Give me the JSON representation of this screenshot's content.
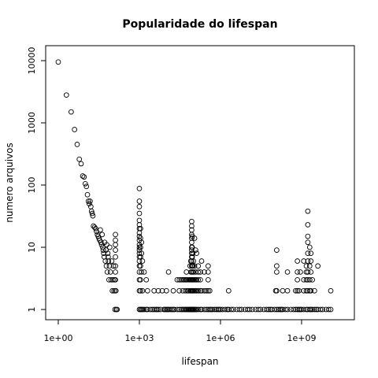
{
  "chart_data": {
    "type": "scatter",
    "title": "Popularidade do lifespan",
    "xlabel": "lifespan",
    "ylabel": "numero arquivos",
    "x_scale": "log",
    "y_scale": "log",
    "xlim": [
      0.7,
      30000000000.0
    ],
    "ylim": [
      0.8,
      13000
    ],
    "grid": false,
    "legend": "none",
    "marker": "open-circle",
    "colors": {
      "marker": "#000000",
      "axes": "#000000",
      "background": "#ffffff"
    },
    "x_ticks": [
      {
        "value": 1,
        "label": "1e+00"
      },
      {
        "value": 1000,
        "label": "1e+03"
      },
      {
        "value": 1000000,
        "label": "1e+06"
      },
      {
        "value": 1000000000,
        "label": "1e+09"
      }
    ],
    "y_ticks": [
      {
        "value": 1,
        "label": "1"
      },
      {
        "value": 10,
        "label": "10"
      },
      {
        "value": 100,
        "label": "100"
      },
      {
        "value": 1000,
        "label": "1000"
      },
      {
        "value": 10000,
        "label": "10000"
      }
    ],
    "points": [
      [
        1,
        9500
      ],
      [
        2,
        2800
      ],
      [
        3,
        1500
      ],
      [
        4,
        780
      ],
      [
        5,
        450
      ],
      [
        6,
        260
      ],
      [
        7,
        220
      ],
      [
        8,
        140
      ],
      [
        9,
        135
      ],
      [
        10,
        105
      ],
      [
        11,
        95
      ],
      [
        12,
        70
      ],
      [
        13,
        55
      ],
      [
        14,
        50
      ],
      [
        15,
        55
      ],
      [
        16,
        45
      ],
      [
        17,
        38
      ],
      [
        18,
        35
      ],
      [
        19,
        32
      ],
      [
        20,
        22
      ],
      [
        22,
        21
      ],
      [
        24,
        20
      ],
      [
        26,
        18
      ],
      [
        28,
        16
      ],
      [
        30,
        15
      ],
      [
        32,
        14
      ],
      [
        34,
        13
      ],
      [
        36,
        19
      ],
      [
        38,
        12
      ],
      [
        40,
        11
      ],
      [
        42,
        16
      ],
      [
        44,
        10
      ],
      [
        46,
        9
      ],
      [
        48,
        8
      ],
      [
        50,
        7
      ],
      [
        52,
        12
      ],
      [
        55,
        6
      ],
      [
        58,
        9
      ],
      [
        60,
        5
      ],
      [
        62,
        11
      ],
      [
        65,
        4
      ],
      [
        68,
        8
      ],
      [
        70,
        7
      ],
      [
        72,
        6
      ],
      [
        75,
        3
      ],
      [
        78,
        5
      ],
      [
        80,
        10
      ],
      [
        85,
        4
      ],
      [
        90,
        3
      ],
      [
        95,
        6
      ],
      [
        100,
        2
      ],
      [
        105,
        3
      ],
      [
        110,
        5
      ],
      [
        115,
        2
      ],
      [
        120,
        3
      ],
      [
        125,
        1
      ],
      [
        130,
        16
      ],
      [
        130,
        13
      ],
      [
        130,
        11
      ],
      [
        130,
        9
      ],
      [
        130,
        7
      ],
      [
        130,
        5
      ],
      [
        130,
        4
      ],
      [
        130,
        3
      ],
      [
        130,
        2
      ],
      [
        135,
        2
      ],
      [
        140,
        1
      ],
      [
        150,
        1
      ],
      [
        1000,
        88
      ],
      [
        1000,
        55
      ],
      [
        1000,
        45
      ],
      [
        1000,
        35
      ],
      [
        1000,
        27
      ],
      [
        1000,
        23
      ],
      [
        1000,
        20
      ],
      [
        1000,
        17
      ],
      [
        1000,
        15
      ],
      [
        1000,
        13
      ],
      [
        1000,
        11
      ],
      [
        1000,
        10
      ],
      [
        1000,
        9
      ],
      [
        1000,
        8
      ],
      [
        1000,
        7
      ],
      [
        1000,
        6
      ],
      [
        1000,
        5
      ],
      [
        1000,
        4
      ],
      [
        1000,
        3
      ],
      [
        1000,
        2
      ],
      [
        1000,
        1
      ],
      [
        1100,
        20
      ],
      [
        1100,
        14
      ],
      [
        1100,
        10
      ],
      [
        1100,
        7
      ],
      [
        1100,
        5
      ],
      [
        1100,
        3
      ],
      [
        1100,
        2
      ],
      [
        1100,
        1
      ],
      [
        1200,
        12
      ],
      [
        1200,
        8
      ],
      [
        1200,
        4
      ],
      [
        1200,
        1
      ],
      [
        1300,
        6
      ],
      [
        1300,
        2
      ],
      [
        1300,
        1
      ],
      [
        1500,
        4
      ],
      [
        1500,
        1
      ],
      [
        1800,
        3
      ],
      [
        1800,
        1
      ],
      [
        2000,
        2
      ],
      [
        2000,
        1
      ],
      [
        2500,
        1
      ],
      [
        3000,
        1
      ],
      [
        3500,
        2
      ],
      [
        3500,
        1
      ],
      [
        4000,
        1
      ],
      [
        4500,
        1
      ],
      [
        5000,
        2
      ],
      [
        5000,
        1
      ],
      [
        6000,
        1
      ],
      [
        7000,
        2
      ],
      [
        8000,
        1
      ],
      [
        9000,
        1
      ],
      [
        10000,
        2
      ],
      [
        10000,
        1
      ],
      [
        11000,
        1
      ],
      [
        12000,
        4
      ],
      [
        12000,
        1
      ],
      [
        14000,
        1
      ],
      [
        16000,
        1
      ],
      [
        18000,
        2
      ],
      [
        18000,
        1
      ],
      [
        20000,
        1
      ],
      [
        25000,
        3
      ],
      [
        25000,
        1
      ],
      [
        30000,
        3
      ],
      [
        30000,
        2
      ],
      [
        30000,
        1
      ],
      [
        35000,
        3
      ],
      [
        35000,
        1
      ],
      [
        40000,
        3
      ],
      [
        40000,
        2
      ],
      [
        40000,
        1
      ],
      [
        45000,
        3
      ],
      [
        45000,
        1
      ],
      [
        50000,
        3
      ],
      [
        50000,
        2
      ],
      [
        50000,
        1
      ],
      [
        55000,
        4
      ],
      [
        55000,
        3
      ],
      [
        55000,
        1
      ],
      [
        60000,
        3
      ],
      [
        60000,
        2
      ],
      [
        60000,
        1
      ],
      [
        65000,
        2
      ],
      [
        65000,
        1
      ],
      [
        70000,
        3
      ],
      [
        70000,
        1
      ],
      [
        75000,
        5
      ],
      [
        75000,
        3
      ],
      [
        75000,
        2
      ],
      [
        75000,
        1
      ],
      [
        80000,
        6
      ],
      [
        80000,
        4
      ],
      [
        80000,
        3
      ],
      [
        80000,
        2
      ],
      [
        80000,
        1
      ],
      [
        86000,
        26
      ],
      [
        86000,
        22
      ],
      [
        86000,
        19
      ],
      [
        86000,
        16
      ],
      [
        86000,
        14
      ],
      [
        86000,
        12
      ],
      [
        86000,
        10
      ],
      [
        86000,
        9
      ],
      [
        86000,
        8
      ],
      [
        86000,
        7
      ],
      [
        86000,
        6
      ],
      [
        86000,
        5
      ],
      [
        86000,
        4
      ],
      [
        86000,
        3
      ],
      [
        86000,
        2
      ],
      [
        86000,
        1
      ],
      [
        90000,
        15
      ],
      [
        90000,
        10
      ],
      [
        90000,
        7
      ],
      [
        90000,
        5
      ],
      [
        90000,
        3
      ],
      [
        90000,
        2
      ],
      [
        90000,
        1
      ],
      [
        95000,
        8
      ],
      [
        95000,
        5
      ],
      [
        95000,
        4
      ],
      [
        95000,
        3
      ],
      [
        95000,
        2
      ],
      [
        95000,
        1
      ],
      [
        100000,
        6
      ],
      [
        100000,
        4
      ],
      [
        100000,
        3
      ],
      [
        100000,
        2
      ],
      [
        100000,
        1
      ],
      [
        110000,
        14
      ],
      [
        110000,
        5
      ],
      [
        110000,
        3
      ],
      [
        110000,
        2
      ],
      [
        110000,
        1
      ],
      [
        120000,
        9
      ],
      [
        120000,
        4
      ],
      [
        120000,
        3
      ],
      [
        120000,
        2
      ],
      [
        120000,
        1
      ],
      [
        130000,
        8
      ],
      [
        130000,
        3
      ],
      [
        130000,
        2
      ],
      [
        130000,
        1
      ],
      [
        150000,
        5
      ],
      [
        150000,
        4
      ],
      [
        150000,
        3
      ],
      [
        150000,
        2
      ],
      [
        150000,
        1
      ],
      [
        180000,
        4
      ],
      [
        180000,
        3
      ],
      [
        180000,
        2
      ],
      [
        180000,
        1
      ],
      [
        200000,
        6
      ],
      [
        200000,
        2
      ],
      [
        200000,
        1
      ],
      [
        250000,
        4
      ],
      [
        250000,
        2
      ],
      [
        250000,
        1
      ],
      [
        300000,
        2
      ],
      [
        300000,
        1
      ],
      [
        350000,
        5
      ],
      [
        350000,
        4
      ],
      [
        350000,
        3
      ],
      [
        350000,
        2
      ],
      [
        350000,
        1
      ],
      [
        400000,
        2
      ],
      [
        400000,
        1
      ],
      [
        450000,
        1
      ],
      [
        500000,
        1
      ],
      [
        600000,
        1
      ],
      [
        700000,
        1
      ],
      [
        800000,
        1
      ],
      [
        900000,
        1
      ],
      [
        1000000,
        1
      ],
      [
        1200000,
        1
      ],
      [
        1500000,
        1
      ],
      [
        1800000,
        1
      ],
      [
        2000000,
        2
      ],
      [
        2000000,
        1
      ],
      [
        2500000,
        1
      ],
      [
        3000000,
        1
      ],
      [
        4000000,
        1
      ],
      [
        5000000,
        1
      ],
      [
        6000000,
        1
      ],
      [
        8000000,
        1
      ],
      [
        10000000,
        1
      ],
      [
        12000000,
        1
      ],
      [
        15000000,
        1
      ],
      [
        20000000,
        1
      ],
      [
        25000000,
        1
      ],
      [
        30000000,
        1
      ],
      [
        40000000,
        1
      ],
      [
        50000000,
        1
      ],
      [
        60000000,
        1
      ],
      [
        70000000,
        1
      ],
      [
        80000000,
        1
      ],
      [
        100000000,
        1
      ],
      [
        110000000,
        2
      ],
      [
        120000000,
        9
      ],
      [
        120000000,
        5
      ],
      [
        120000000,
        4
      ],
      [
        120000000,
        2
      ],
      [
        120000000,
        1
      ],
      [
        140000000,
        1
      ],
      [
        160000000,
        1
      ],
      [
        180000000,
        1
      ],
      [
        200000000,
        2
      ],
      [
        200000000,
        1
      ],
      [
        250000000,
        1
      ],
      [
        300000000,
        4
      ],
      [
        300000000,
        2
      ],
      [
        300000000,
        1
      ],
      [
        400000000,
        1
      ],
      [
        500000000,
        1
      ],
      [
        600000000,
        2
      ],
      [
        600000000,
        1
      ],
      [
        700000000,
        6
      ],
      [
        700000000,
        4
      ],
      [
        700000000,
        3
      ],
      [
        700000000,
        2
      ],
      [
        700000000,
        1
      ],
      [
        800000000,
        2
      ],
      [
        800000000,
        1
      ],
      [
        900000000,
        4
      ],
      [
        900000000,
        1
      ],
      [
        1000000000,
        1
      ],
      [
        1200000000,
        6
      ],
      [
        1200000000,
        3
      ],
      [
        1200000000,
        2
      ],
      [
        1200000000,
        1
      ],
      [
        1500000000,
        5
      ],
      [
        1500000000,
        4
      ],
      [
        1500000000,
        3
      ],
      [
        1500000000,
        2
      ],
      [
        1500000000,
        1
      ],
      [
        1700000000,
        38
      ],
      [
        1700000000,
        23
      ],
      [
        1700000000,
        15
      ],
      [
        1700000000,
        12
      ],
      [
        1700000000,
        8
      ],
      [
        1700000000,
        6
      ],
      [
        1700000000,
        4
      ],
      [
        1700000000,
        3
      ],
      [
        1700000000,
        2
      ],
      [
        1700000000,
        1
      ],
      [
        2000000000,
        10
      ],
      [
        2000000000,
        5
      ],
      [
        2000000000,
        3
      ],
      [
        2000000000,
        2
      ],
      [
        2000000000,
        1
      ],
      [
        2200000000,
        8
      ],
      [
        2200000000,
        6
      ],
      [
        2200000000,
        4
      ],
      [
        2200000000,
        2
      ],
      [
        2200000000,
        1
      ],
      [
        2500000000,
        3
      ],
      [
        2500000000,
        1
      ],
      [
        3000000000,
        2
      ],
      [
        3000000000,
        1
      ],
      [
        3500000000,
        1
      ],
      [
        4000000000,
        5
      ],
      [
        4000000000,
        1
      ],
      [
        5000000000,
        1
      ],
      [
        6000000000,
        1
      ],
      [
        8000000000,
        1
      ],
      [
        10000000000,
        1
      ],
      [
        12000000000,
        2
      ],
      [
        12000000000,
        1
      ]
    ]
  }
}
